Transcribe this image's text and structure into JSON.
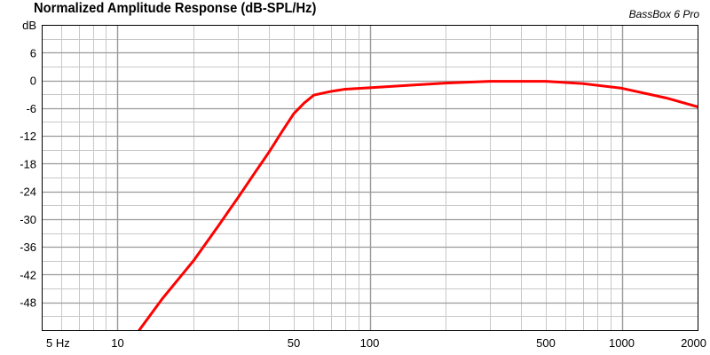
{
  "chart_data": {
    "type": "line",
    "title": "Normalized Amplitude Response (dB-SPL/Hz)",
    "brand": "BassBox 6 Pro",
    "x_scale": "log",
    "xlim": [
      5,
      2000
    ],
    "ylim": [
      -54,
      12
    ],
    "ylabel": "dB",
    "x_ticks": [
      {
        "value": 5,
        "label": "5 Hz"
      },
      {
        "value": 10,
        "label": "10"
      },
      {
        "value": 50,
        "label": "50"
      },
      {
        "value": 100,
        "label": "100"
      },
      {
        "value": 500,
        "label": "500"
      },
      {
        "value": 1000,
        "label": "1000"
      },
      {
        "value": 2000,
        "label": "2000"
      }
    ],
    "y_ticks": [
      6,
      0,
      -6,
      -12,
      -18,
      -24,
      -30,
      -36,
      -42,
      -48
    ],
    "grid": true,
    "series": [
      {
        "color": "#ff0000",
        "x": [
          12,
          15,
          20,
          25,
          30,
          35,
          40,
          45,
          50,
          55,
          60,
          70,
          80,
          100,
          150,
          200,
          300,
          400,
          500,
          700,
          1000,
          1500,
          2000
        ],
        "y": [
          -54.5,
          -47.3,
          -39.0,
          -31.6,
          -25.4,
          -20.0,
          -15.4,
          -11.0,
          -7.2,
          -4.9,
          -3.2,
          -2.4,
          -1.9,
          -1.6,
          -1.0,
          -0.6,
          -0.2,
          -0.2,
          -0.2,
          -0.7,
          -1.7,
          -3.8,
          -5.7
        ]
      }
    ]
  }
}
